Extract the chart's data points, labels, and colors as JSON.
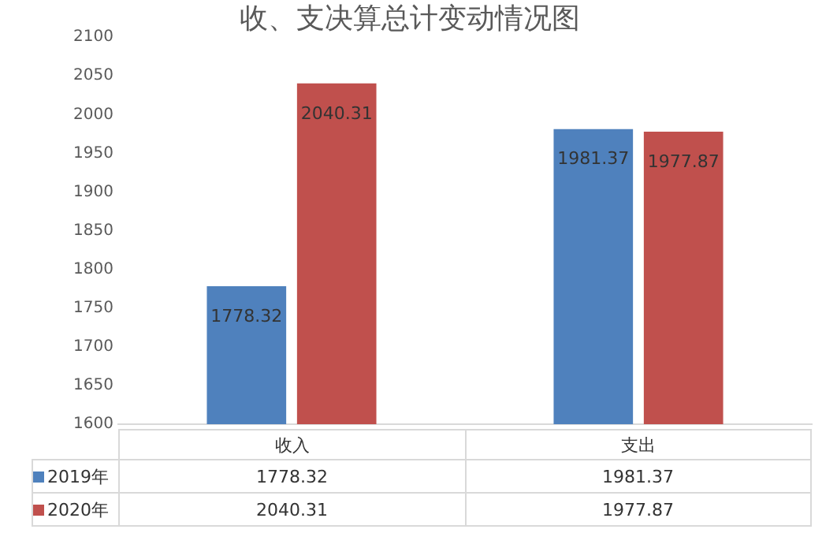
{
  "chart_data": {
    "type": "bar",
    "title": "收、支决算总计变动情况图",
    "categories": [
      "收入",
      "支出"
    ],
    "series": [
      {
        "name": "2019年",
        "color": "#4f81bd",
        "values": [
          1778.32,
          1981.37
        ],
        "value_labels": [
          "1778.32",
          "1981.37"
        ]
      },
      {
        "name": "2020年",
        "color": "#c0504d",
        "values": [
          2040.31,
          1977.87
        ],
        "value_labels": [
          "2040.31",
          "1977.87"
        ]
      }
    ],
    "ylim": [
      1600,
      2100
    ],
    "yticks": [
      1600,
      1650,
      1700,
      1750,
      1800,
      1850,
      1900,
      1950,
      2000,
      2050,
      2100
    ],
    "grid": false,
    "legend": "bottom",
    "data_labels": true,
    "annotations": [
      {
        "text": "1778.32",
        "x": "收入",
        "y": 1778.32
      },
      {
        "text": "2040.31",
        "x": "收入",
        "y": 2040.31
      },
      {
        "text": "1981.37",
        "x": "支出",
        "y": 1981.37
      },
      {
        "text": "1977.87",
        "x": "支出",
        "y": 1977.87
      }
    ]
  }
}
